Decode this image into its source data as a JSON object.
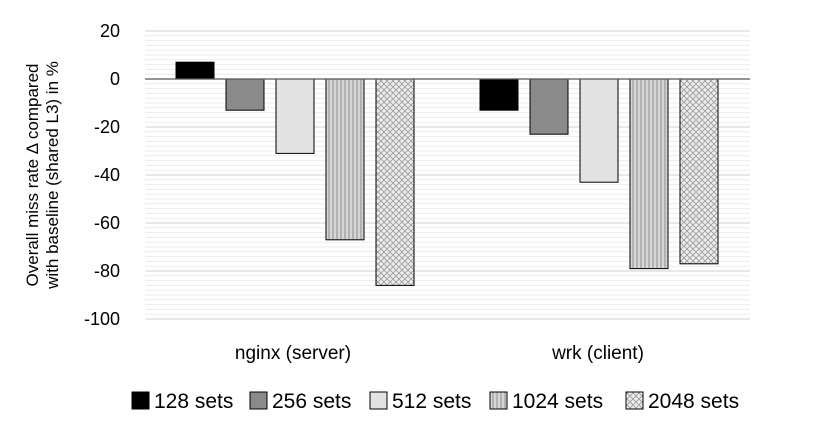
{
  "chart_data": {
    "type": "bar",
    "categories": [
      "nginx (server)",
      "wrk (client)"
    ],
    "ylabel_lines": [
      "Overall miss rate Δ compared",
      "with baseline (shared L3) in %"
    ],
    "ylim": [
      -100,
      20
    ],
    "yticks": [
      20,
      0,
      -20,
      -40,
      -60,
      -80,
      -100
    ],
    "grid": true,
    "legend_position": "bottom",
    "series": [
      {
        "name": "128 sets",
        "values": [
          7,
          -13
        ],
        "fill": "#000000",
        "pattern": "solid"
      },
      {
        "name": "256 sets",
        "values": [
          -13,
          -23
        ],
        "fill": "#8a8a8a",
        "pattern": "solid"
      },
      {
        "name": "512 sets",
        "values": [
          -31,
          -43
        ],
        "fill": "#e2e2e2",
        "pattern": "solid"
      },
      {
        "name": "1024 sets",
        "values": [
          -67,
          -79
        ],
        "fill": "#cfcfcf",
        "pattern": "vertical-lines"
      },
      {
        "name": "2048 sets",
        "values": [
          -86,
          -77
        ],
        "fill": "#e6e6e6",
        "pattern": "crosshatch"
      }
    ]
  }
}
